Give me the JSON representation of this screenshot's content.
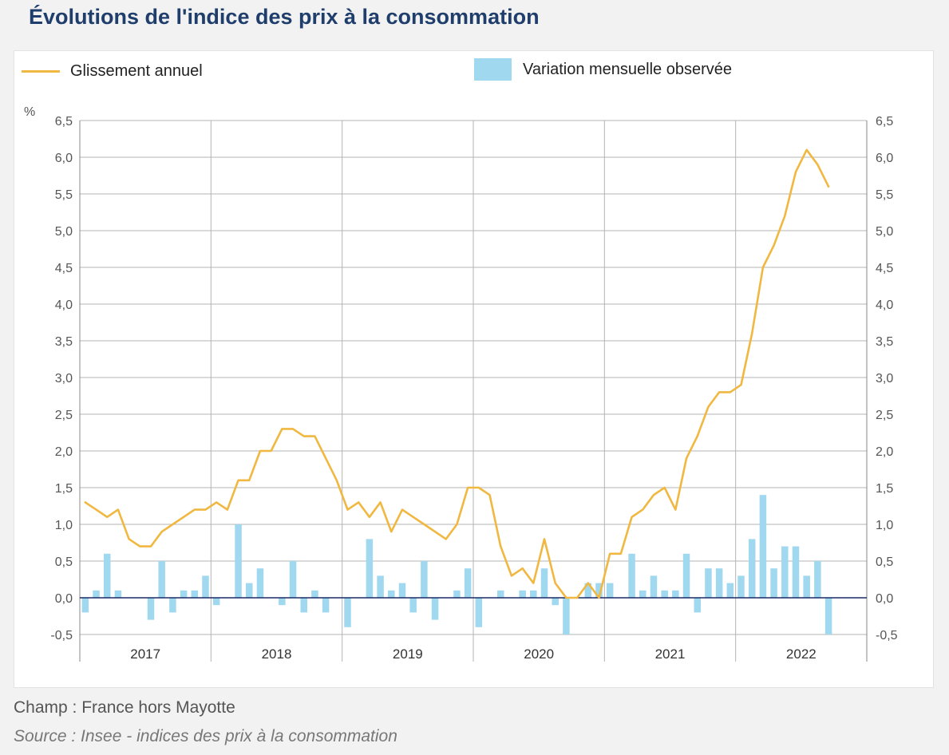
{
  "title": "Évolutions de l'indice des prix à la consommation",
  "footer": {
    "champ": "Champ : France hors Mayotte",
    "source": "Source : Insee - indices des prix à la consommation"
  },
  "colors": {
    "line": "#f0b840",
    "bar": "#9fd8ef",
    "zero_line": "#1a2a66",
    "grid": "#b5b5b5",
    "title": "#1f3e6b"
  },
  "chart_data": {
    "type": "bar+line",
    "y_unit": "%",
    "ylim": [
      -0.5,
      6.5
    ],
    "y_ticks": [
      "6,5",
      "6,0",
      "5,5",
      "5,0",
      "4,5",
      "4,0",
      "3,5",
      "3,0",
      "2,5",
      "2,0",
      "1,5",
      "1,0",
      "0,5",
      "0,0",
      "-0,5"
    ],
    "y_tick_values": [
      6.5,
      6.0,
      5.5,
      5.0,
      4.5,
      4.0,
      3.5,
      3.0,
      2.5,
      2.0,
      1.5,
      1.0,
      0.5,
      0.0,
      -0.5
    ],
    "years": [
      "2017",
      "2018",
      "2019",
      "2020",
      "2021",
      "2022"
    ],
    "months_per_year": 12,
    "series": [
      {
        "name": "Glissement annuel",
        "kind": "line",
        "values": [
          1.3,
          1.2,
          1.1,
          1.2,
          0.8,
          0.7,
          0.7,
          0.9,
          1.0,
          1.1,
          1.2,
          1.2,
          1.3,
          1.2,
          1.6,
          1.6,
          2.0,
          2.0,
          2.3,
          2.3,
          2.2,
          2.2,
          1.9,
          1.6,
          1.2,
          1.3,
          1.1,
          1.3,
          0.9,
          1.2,
          1.1,
          1.0,
          0.9,
          0.8,
          1.0,
          1.5,
          1.5,
          1.4,
          0.7,
          0.3,
          0.4,
          0.2,
          0.8,
          0.2,
          0.0,
          0.0,
          0.2,
          0.0,
          0.6,
          0.6,
          1.1,
          1.2,
          1.4,
          1.5,
          1.2,
          1.9,
          2.2,
          2.6,
          2.8,
          2.8,
          2.9,
          3.6,
          4.5,
          4.8,
          5.2,
          5.8,
          6.1,
          5.9,
          5.6
        ]
      },
      {
        "name": "Variation mensuelle observée",
        "kind": "bar",
        "values": [
          -0.2,
          0.1,
          0.6,
          0.1,
          0.0,
          0.0,
          -0.3,
          0.5,
          -0.2,
          0.1,
          0.1,
          0.3,
          -0.1,
          0.0,
          1.0,
          0.2,
          0.4,
          0.0,
          -0.1,
          0.5,
          -0.2,
          0.1,
          -0.2,
          0.0,
          -0.4,
          0.0,
          0.8,
          0.3,
          0.1,
          0.2,
          -0.2,
          0.5,
          -0.3,
          0.0,
          0.1,
          0.4,
          -0.4,
          0.0,
          0.1,
          0.0,
          0.1,
          0.1,
          0.4,
          -0.1,
          -0.5,
          0.0,
          0.2,
          0.2,
          0.2,
          0.0,
          0.6,
          0.1,
          0.3,
          0.1,
          0.1,
          0.6,
          -0.2,
          0.4,
          0.4,
          0.2,
          0.3,
          0.8,
          1.4,
          0.4,
          0.7,
          0.7,
          0.3,
          0.5,
          -0.5
        ]
      }
    ]
  }
}
